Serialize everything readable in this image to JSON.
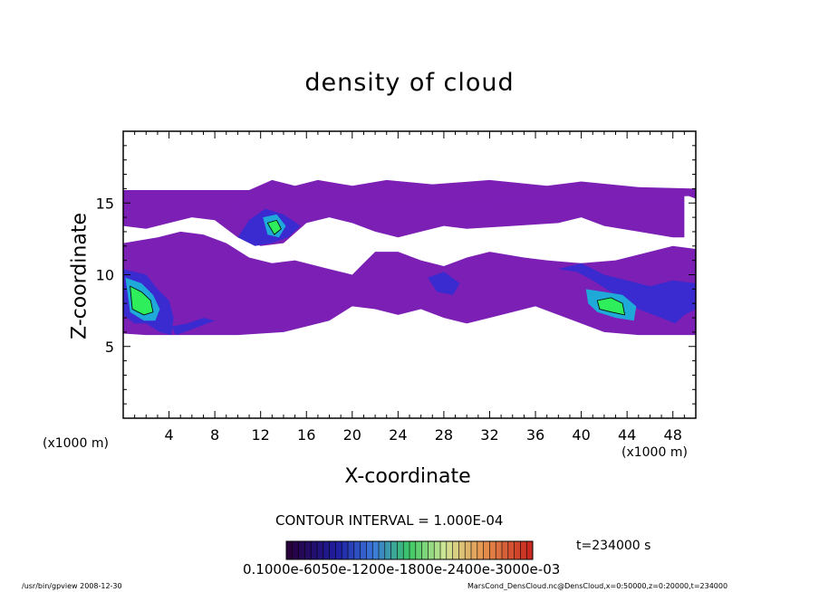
{
  "chart_data": {
    "type": "heatmap",
    "title": "density of cloud",
    "xlabel": "X-coordinate",
    "ylabel": "Z-coordinate",
    "x_unit": "(x1000 m)",
    "x_ticks": [
      4,
      8,
      12,
      16,
      20,
      24,
      28,
      32,
      36,
      40,
      44,
      48
    ],
    "y_ticks": [
      5,
      10,
      15
    ],
    "xlim": [
      0,
      50
    ],
    "ylim": [
      0,
      20
    ],
    "contour_interval": "CONTOUR INTERVAL = 1.000E-04",
    "time_label": "t=234000 s",
    "colorbar_tick_text": "0.1000e-6050e-1200e-1800e-2400e-3000e-03",
    "colorbar_range": [
      0,
      0.0003
    ],
    "layers": [
      {
        "level": "faint",
        "color": "#7b1fb5",
        "regions": [
          [
            0,
            15.9,
            50,
            15.9,
            50,
            15.3,
            49,
            15.6,
            49,
            12.6,
            48,
            12.6,
            45,
            13.0,
            42,
            13.4,
            40,
            14.0,
            38,
            13.6,
            34,
            13.4,
            30,
            13.2,
            28,
            13.4,
            26,
            13.0,
            24,
            12.6,
            22,
            13.0,
            20,
            13.6,
            18,
            14.0,
            16,
            13.6,
            14,
            12.2,
            12,
            12.0,
            10,
            12.6,
            8,
            13.8,
            6,
            14.0,
            4,
            13.6,
            2,
            13.2,
            0,
            13.4,
            0,
            15.9
          ],
          [
            9.6,
            14.4,
            11,
            15.9,
            13,
            16.6,
            15,
            16.2,
            17,
            16.6,
            20,
            16.2,
            23,
            16.6,
            27,
            16.3,
            32,
            16.6,
            37,
            16.2,
            40,
            16.5,
            45,
            16.1,
            50,
            16.0,
            50,
            15.5
          ],
          [
            0,
            12.2,
            3,
            12.6,
            5,
            13.0,
            7,
            12.8,
            9,
            12.2,
            11,
            11.2,
            13,
            10.8,
            15,
            11.0,
            18,
            10.4,
            20,
            10.0,
            21,
            10.8,
            22,
            11.6,
            24,
            11.6,
            26,
            11.0,
            28,
            10.6,
            30,
            11.2,
            32,
            11.6,
            35,
            11.2,
            37,
            11.0,
            40,
            10.8,
            43,
            11.0,
            46,
            11.6,
            48,
            12.0,
            50,
            11.8,
            50,
            5.8,
            45,
            5.8,
            42,
            6.0,
            40,
            6.6,
            38,
            7.2,
            36,
            7.8,
            34,
            7.4,
            32,
            7.0,
            30,
            6.6,
            28,
            7.0,
            26,
            7.6,
            24,
            7.2,
            22,
            7.6,
            20,
            7.8,
            18,
            6.8,
            16,
            6.4,
            14,
            6.0,
            10,
            5.8,
            6,
            5.8,
            4,
            5.8,
            2,
            5.8,
            0,
            5.9
          ]
        ]
      },
      {
        "level": "low",
        "color": "#3a2bd0",
        "regions": [
          [
            0,
            10.4,
            2,
            10.0,
            3,
            9.0,
            4,
            8.2,
            4.4,
            7.0,
            4.2,
            5.8,
            3.2,
            6.0,
            2,
            6.6,
            1,
            6.6,
            0,
            7.2
          ],
          [
            10,
            12.6,
            11,
            13.8,
            12.4,
            14.6,
            14,
            14.2,
            15.5,
            13.4,
            14.4,
            12.6,
            13,
            12.2,
            11.5,
            12.0
          ],
          [
            38,
            10.4,
            39.6,
            10.2,
            41,
            9.6,
            43,
            8.6,
            45,
            7.6,
            47,
            7.0,
            48.2,
            6.6,
            49,
            7.2,
            50,
            7.6,
            50,
            9.4,
            48,
            9.6,
            46,
            9.2,
            44,
            9.6,
            42,
            10.0,
            40,
            10.8
          ],
          [
            26.6,
            9.8,
            28,
            10.2,
            29.4,
            9.4,
            28.8,
            8.6,
            27.4,
            8.8
          ],
          [
            4.2,
            6.4,
            5.6,
            6.6,
            7,
            7.0,
            8,
            6.8,
            6,
            6.2,
            4.6,
            5.8
          ]
        ]
      },
      {
        "level": "mid",
        "color": "#1ea9d8",
        "regions": [
          [
            0.2,
            9.8,
            1.6,
            9.4,
            2.6,
            8.6,
            3.2,
            7.6,
            2.8,
            6.8,
            1.8,
            6.8,
            0.6,
            7.4
          ],
          [
            12.2,
            14.0,
            13.4,
            14.2,
            14.2,
            13.4,
            13.6,
            12.6,
            12.6,
            12.8
          ],
          [
            40.4,
            9.0,
            42,
            8.8,
            43.6,
            8.6,
            44.8,
            7.8,
            44.6,
            6.8,
            43,
            7.0,
            41.4,
            7.4,
            40.6,
            8.0
          ]
        ]
      },
      {
        "level": "high",
        "color": "#2fee5c",
        "regions": [
          [
            0.6,
            9.2,
            1.6,
            8.8,
            2.4,
            8.2,
            2.6,
            7.4,
            1.8,
            7.2,
            0.8,
            7.6
          ],
          [
            12.6,
            13.6,
            13.4,
            13.8,
            13.8,
            13.2,
            13.2,
            12.8
          ],
          [
            41.4,
            8.2,
            42.6,
            8.4,
            43.6,
            8.0,
            43.8,
            7.2,
            42.6,
            7.4,
            41.6,
            7.6
          ]
        ]
      }
    ]
  },
  "footer": {
    "left": "/usr/bin/gpview   2008-12-30",
    "right": "MarsCond_DensCloud.nc@DensCloud,x=0:50000,z=0:20000,t=234000"
  }
}
